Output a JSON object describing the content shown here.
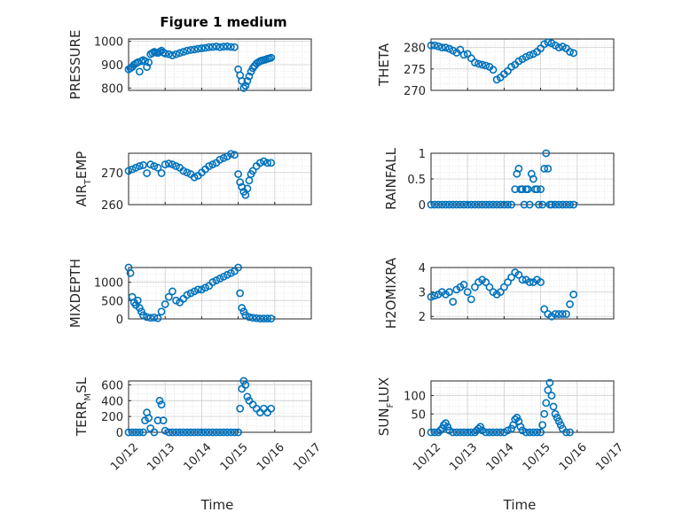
{
  "figure": {
    "title": "Figure 1 medium",
    "marker_color": "#0072bd",
    "axis_color": "#262626",
    "grid_color": "#dfdfdf"
  },
  "xaxis": {
    "label": "Time",
    "tick_labels": [
      "10/12",
      "10/13",
      "10/14",
      "10/15",
      "10/16",
      "10/17"
    ],
    "lim": [
      0,
      5
    ]
  },
  "chart_data": [
    {
      "type": "scatter",
      "ylabel": "PRESSURE",
      "ylabel_main": "PRESSURE",
      "ylabel_sub": "",
      "ylabel_rest": "",
      "ylim": [
        790,
        1010
      ],
      "yticks": [
        800,
        900,
        1000
      ],
      "ytick_labels": [
        "800",
        "900",
        "1000"
      ],
      "grid": true,
      "x": [
        0.0,
        0.05,
        0.1,
        0.15,
        0.2,
        0.25,
        0.3,
        0.35,
        0.4,
        0.45,
        0.5,
        0.55,
        0.6,
        0.65,
        0.7,
        0.75,
        0.8,
        0.85,
        0.9,
        0.95,
        1.0,
        1.1,
        1.2,
        1.3,
        1.4,
        1.5,
        1.6,
        1.7,
        1.8,
        1.9,
        2.0,
        2.1,
        2.2,
        2.3,
        2.4,
        2.5,
        2.6,
        2.7,
        2.8,
        2.9,
        3.0,
        3.05,
        3.1,
        3.15,
        3.2,
        3.25,
        3.3,
        3.35,
        3.4,
        3.45,
        3.5,
        3.55,
        3.6,
        3.65,
        3.7,
        3.75,
        3.8,
        3.85,
        3.9
      ],
      "y": [
        880,
        885,
        890,
        900,
        905,
        910,
        870,
        915,
        920,
        915,
        890,
        910,
        945,
        950,
        955,
        952,
        950,
        955,
        960,
        952,
        948,
        945,
        940,
        945,
        950,
        955,
        960,
        963,
        965,
        968,
        970,
        972,
        975,
        976,
        978,
        975,
        977,
        978,
        976,
        975,
        880,
        855,
        830,
        800,
        810,
        830,
        850,
        870,
        885,
        895,
        905,
        910,
        915,
        918,
        920,
        922,
        925,
        927,
        930
      ]
    },
    {
      "type": "scatter",
      "ylabel": "THETA",
      "ylabel_main": "THETA",
      "ylabel_sub": "",
      "ylabel_rest": "",
      "ylim": [
        270,
        282
      ],
      "yticks": [
        270,
        275,
        280
      ],
      "ytick_labels": [
        "270",
        "275",
        "280"
      ],
      "grid": true,
      "x": [
        0.0,
        0.1,
        0.2,
        0.3,
        0.4,
        0.5,
        0.6,
        0.7,
        0.8,
        0.9,
        1.0,
        1.1,
        1.2,
        1.3,
        1.4,
        1.5,
        1.6,
        1.7,
        1.8,
        1.9,
        2.0,
        2.1,
        2.2,
        2.3,
        2.4,
        2.5,
        2.6,
        2.7,
        2.8,
        2.9,
        3.0,
        3.1,
        3.2,
        3.3,
        3.4,
        3.5,
        3.6,
        3.7,
        3.8,
        3.9
      ],
      "y": [
        280.5,
        280.5,
        280.3,
        280.0,
        280.0,
        279.7,
        279.3,
        278.8,
        279.5,
        278.3,
        278.5,
        277.5,
        276.5,
        276.2,
        276.0,
        275.8,
        275.5,
        274.8,
        272.5,
        273.0,
        273.8,
        274.5,
        275.5,
        276.0,
        276.8,
        277.3,
        277.8,
        278.2,
        278.5,
        279.0,
        279.8,
        280.8,
        281.2,
        281.0,
        280.5,
        280.0,
        280.2,
        279.8,
        279.0,
        278.7
      ]
    },
    {
      "type": "scatter",
      "ylabel": "AIR_TEMP",
      "ylabel_main": "AIR",
      "ylabel_sub": "T",
      "ylabel_rest": "EMP",
      "ylim": [
        260,
        276
      ],
      "yticks": [
        260,
        270
      ],
      "ytick_labels": [
        "260",
        "270"
      ],
      "grid": true,
      "x": [
        0.0,
        0.1,
        0.2,
        0.3,
        0.4,
        0.5,
        0.6,
        0.7,
        0.8,
        0.9,
        1.0,
        1.1,
        1.2,
        1.3,
        1.4,
        1.5,
        1.6,
        1.7,
        1.8,
        1.9,
        2.0,
        2.1,
        2.2,
        2.3,
        2.4,
        2.5,
        2.6,
        2.7,
        2.8,
        2.9,
        3.0,
        3.05,
        3.1,
        3.15,
        3.2,
        3.25,
        3.3,
        3.35,
        3.4,
        3.5,
        3.6,
        3.7,
        3.8,
        3.9
      ],
      "y": [
        270.5,
        271.0,
        271.5,
        272.0,
        272.3,
        269.8,
        272.5,
        272.0,
        271.5,
        269.8,
        272.5,
        272.8,
        272.5,
        272.0,
        271.5,
        270.5,
        270.0,
        269.5,
        268.5,
        269.0,
        270.0,
        271.0,
        272.0,
        272.5,
        273.0,
        274.0,
        274.5,
        275.0,
        275.8,
        275.5,
        269.5,
        267.0,
        265.5,
        264.0,
        263.0,
        265.0,
        267.5,
        269.5,
        270.5,
        272.0,
        273.0,
        273.5,
        273.0,
        273.0
      ]
    },
    {
      "type": "scatter",
      "ylabel": "RAINFALL",
      "ylabel_main": "RAINFALL",
      "ylabel_sub": "",
      "ylabel_rest": "",
      "ylim": [
        0,
        1.0
      ],
      "yticks": [
        0,
        0.5,
        1
      ],
      "ytick_labels": [
        "0",
        "0.5",
        "1"
      ],
      "grid": true,
      "x": [
        0.0,
        0.1,
        0.2,
        0.3,
        0.4,
        0.5,
        0.6,
        0.7,
        0.8,
        0.9,
        1.0,
        1.1,
        1.2,
        1.3,
        1.4,
        1.5,
        1.6,
        1.7,
        1.8,
        1.9,
        2.0,
        2.1,
        2.2,
        2.3,
        2.35,
        2.4,
        2.45,
        2.5,
        2.55,
        2.6,
        2.65,
        2.7,
        2.75,
        2.8,
        2.85,
        2.9,
        2.95,
        3.0,
        3.05,
        3.1,
        3.15,
        3.2,
        3.25,
        3.3,
        3.4,
        3.5,
        3.6,
        3.7,
        3.8,
        3.9
      ],
      "y": [
        0,
        0,
        0,
        0,
        0,
        0,
        0,
        0,
        0,
        0,
        0,
        0,
        0,
        0,
        0,
        0,
        0,
        0,
        0,
        0,
        0,
        0,
        0,
        0.3,
        0.6,
        0.7,
        0.3,
        0.3,
        0,
        0.3,
        0.3,
        0,
        0.6,
        0.5,
        0.3,
        0.3,
        0,
        0.3,
        0,
        0.7,
        1.0,
        0.7,
        0,
        0,
        0,
        0,
        0,
        0,
        0,
        0
      ]
    },
    {
      "type": "scatter",
      "ylabel": "MIXDEPTH",
      "ylabel_main": "MIXDEPTH",
      "ylabel_sub": "",
      "ylabel_rest": "",
      "ylim": [
        0,
        1400
      ],
      "yticks": [
        0,
        500,
        1000
      ],
      "ytick_labels": [
        "0",
        "500",
        "1000"
      ],
      "grid": true,
      "x": [
        0.0,
        0.05,
        0.1,
        0.15,
        0.2,
        0.25,
        0.3,
        0.35,
        0.4,
        0.5,
        0.6,
        0.7,
        0.8,
        0.9,
        1.0,
        1.1,
        1.2,
        1.3,
        1.4,
        1.5,
        1.6,
        1.7,
        1.8,
        1.9,
        2.0,
        2.1,
        2.2,
        2.3,
        2.4,
        2.5,
        2.6,
        2.7,
        2.8,
        2.9,
        3.0,
        3.05,
        3.1,
        3.15,
        3.2,
        3.3,
        3.4,
        3.5,
        3.6,
        3.7,
        3.8,
        3.9
      ],
      "y": [
        1400,
        1250,
        600,
        450,
        380,
        500,
        300,
        200,
        100,
        50,
        30,
        40,
        20,
        200,
        400,
        600,
        750,
        500,
        450,
        550,
        650,
        700,
        750,
        800,
        800,
        850,
        900,
        1000,
        1050,
        1100,
        1150,
        1200,
        1250,
        1300,
        1400,
        700,
        300,
        200,
        100,
        50,
        30,
        20,
        10,
        10,
        10,
        10
      ]
    },
    {
      "type": "scatter",
      "ylabel": "H2OMIXRA",
      "ylabel_main": "H2OMIXRA",
      "ylabel_sub": "",
      "ylabel_rest": "",
      "ylim": [
        1.9,
        4.0
      ],
      "yticks": [
        2,
        3,
        4
      ],
      "ytick_labels": [
        "2",
        "3",
        "4"
      ],
      "grid": true,
      "x": [
        0.0,
        0.1,
        0.2,
        0.3,
        0.4,
        0.5,
        0.6,
        0.7,
        0.8,
        0.9,
        1.0,
        1.1,
        1.2,
        1.3,
        1.4,
        1.5,
        1.6,
        1.7,
        1.8,
        1.9,
        2.0,
        2.1,
        2.2,
        2.3,
        2.4,
        2.5,
        2.6,
        2.7,
        2.8,
        2.9,
        3.0,
        3.1,
        3.2,
        3.3,
        3.4,
        3.5,
        3.6,
        3.7,
        3.8,
        3.9
      ],
      "y": [
        2.8,
        2.85,
        2.9,
        3.0,
        2.9,
        3.0,
        2.6,
        3.1,
        3.2,
        3.3,
        3.0,
        2.7,
        3.2,
        3.4,
        3.5,
        3.4,
        3.2,
        3.0,
        2.9,
        3.0,
        3.2,
        3.4,
        3.6,
        3.8,
        3.7,
        3.5,
        3.5,
        3.4,
        3.4,
        3.5,
        3.4,
        2.3,
        2.1,
        2.0,
        2.1,
        2.1,
        2.1,
        2.1,
        2.5,
        2.9
      ]
    },
    {
      "type": "scatter",
      "ylabel": "TERR_MSL",
      "ylabel_main": "TERR",
      "ylabel_sub": "M",
      "ylabel_rest": "SL",
      "ylim": [
        0,
        650
      ],
      "yticks": [
        0,
        200,
        400,
        600
      ],
      "ytick_labels": [
        "0",
        "200",
        "400",
        "600"
      ],
      "grid": true,
      "x": [
        0.0,
        0.1,
        0.2,
        0.3,
        0.4,
        0.45,
        0.5,
        0.55,
        0.6,
        0.7,
        0.8,
        0.85,
        0.9,
        0.95,
        1.0,
        1.1,
        1.2,
        1.3,
        1.4,
        1.5,
        1.6,
        1.7,
        1.8,
        1.9,
        2.0,
        2.1,
        2.2,
        2.3,
        2.4,
        2.5,
        2.6,
        2.7,
        2.8,
        2.9,
        3.0,
        3.05,
        3.1,
        3.15,
        3.2,
        3.25,
        3.3,
        3.4,
        3.5,
        3.6,
        3.7,
        3.8,
        3.9
      ],
      "y": [
        0,
        0,
        0,
        0,
        0,
        150,
        250,
        180,
        50,
        0,
        150,
        400,
        350,
        150,
        20,
        0,
        0,
        0,
        0,
        0,
        0,
        0,
        0,
        0,
        0,
        0,
        0,
        0,
        0,
        0,
        0,
        0,
        0,
        0,
        0,
        300,
        550,
        650,
        600,
        450,
        400,
        350,
        300,
        250,
        300,
        250,
        300
      ]
    },
    {
      "type": "scatter",
      "ylabel": "SUN_FLUX",
      "ylabel_main": "SUN",
      "ylabel_sub": "F",
      "ylabel_rest": "LUX",
      "ylim": [
        0,
        140
      ],
      "yticks": [
        0,
        50,
        100
      ],
      "ytick_labels": [
        "0",
        "50",
        "100"
      ],
      "grid": true,
      "x": [
        0.0,
        0.1,
        0.2,
        0.25,
        0.3,
        0.35,
        0.4,
        0.45,
        0.5,
        0.6,
        0.7,
        0.8,
        0.9,
        1.0,
        1.1,
        1.2,
        1.25,
        1.3,
        1.35,
        1.4,
        1.5,
        1.6,
        1.7,
        1.8,
        1.9,
        2.0,
        2.1,
        2.2,
        2.25,
        2.3,
        2.35,
        2.4,
        2.45,
        2.5,
        2.6,
        2.7,
        2.8,
        2.9,
        3.0,
        3.05,
        3.1,
        3.15,
        3.2,
        3.25,
        3.3,
        3.35,
        3.4,
        3.45,
        3.5,
        3.55,
        3.6,
        3.7,
        3.8
      ],
      "y": [
        0,
        0,
        0,
        5,
        10,
        20,
        25,
        15,
        5,
        0,
        0,
        0,
        0,
        0,
        0,
        0,
        5,
        10,
        15,
        5,
        0,
        0,
        0,
        0,
        0,
        0,
        5,
        10,
        20,
        35,
        40,
        30,
        15,
        5,
        0,
        0,
        0,
        0,
        0,
        20,
        50,
        80,
        115,
        135,
        100,
        70,
        50,
        40,
        30,
        20,
        10,
        0,
        0
      ]
    }
  ]
}
